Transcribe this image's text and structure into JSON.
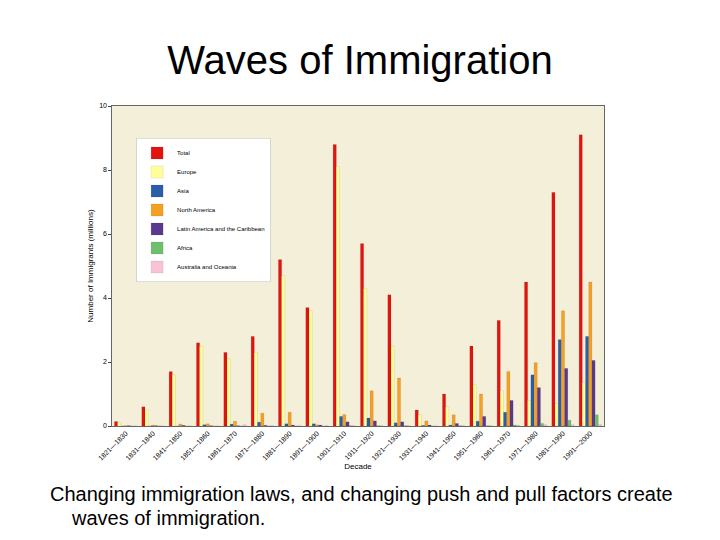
{
  "chart_data": {
    "type": "bar",
    "title": "Waves of Immigration",
    "annotations": [
      "Changing immigration laws, and changing push and pull factors create waves of immigration."
    ],
    "x_label": "Decade",
    "y_label": "Number of Immigrants (millions)",
    "categories": [
      "1821—1830",
      "1831—1840",
      "1841—1850",
      "1851—1860",
      "1861—1870",
      "1871—1880",
      "1881—1890",
      "1891—1900",
      "1901—1910",
      "1911—1920",
      "1921—1930",
      "1931—1940",
      "1941—1950",
      "1951—1960",
      "1961—1970",
      "1971—1980",
      "1981—1990",
      "1991—2000"
    ],
    "series": [
      {
        "name": "Total",
        "color": "#e3140f",
        "values": [
          0.14,
          0.6,
          1.7,
          2.6,
          2.3,
          2.8,
          5.2,
          3.7,
          8.8,
          5.7,
          4.1,
          0.5,
          1.0,
          2.5,
          3.3,
          4.5,
          7.3,
          9.1
        ]
      },
      {
        "name": "Europe",
        "color": "#ffff99",
        "values": [
          0.1,
          0.5,
          1.6,
          2.5,
          2.1,
          2.3,
          4.7,
          3.6,
          8.1,
          4.3,
          2.5,
          0.35,
          0.6,
          1.3,
          1.1,
          0.8,
          0.7,
          1.35
        ]
      },
      {
        "name": "Asia",
        "color": "#2a5ea8",
        "values": [
          0,
          0,
          0,
          0.04,
          0.06,
          0.12,
          0.07,
          0.07,
          0.3,
          0.25,
          0.1,
          0.02,
          0.03,
          0.15,
          0.43,
          1.6,
          2.7,
          2.8
        ]
      },
      {
        "name": "North America",
        "color": "#f5a023",
        "values": [
          0.01,
          0.03,
          0.06,
          0.07,
          0.15,
          0.4,
          0.43,
          0.04,
          0.36,
          1.1,
          1.5,
          0.16,
          0.35,
          1.0,
          1.7,
          1.98,
          3.6,
          4.5
        ]
      },
      {
        "name": "Latin America and the Caribbean",
        "color": "#5a3a8c",
        "values": [
          0.01,
          0.01,
          0.02,
          0.01,
          0.01,
          0.02,
          0.03,
          0.03,
          0.13,
          0.16,
          0.13,
          0.03,
          0.08,
          0.3,
          0.8,
          1.2,
          1.8,
          2.05
        ]
      },
      {
        "name": "Africa",
        "color": "#6cbf6c",
        "values": [
          0,
          0,
          0,
          0,
          0,
          0,
          0,
          0,
          0.01,
          0.01,
          0.01,
          0,
          0.01,
          0.01,
          0.03,
          0.08,
          0.18,
          0.35
        ]
      },
      {
        "name": "Australia and Oceania",
        "color": "#f9c3d3",
        "values": [
          0,
          0,
          0,
          0,
          0.04,
          0.01,
          0.01,
          0.01,
          0.01,
          0.01,
          0.01,
          0,
          0.01,
          0.01,
          0.03,
          0.04,
          0.04,
          0.05
        ]
      }
    ],
    "ylim": [
      0,
      10
    ],
    "yticks": [
      0,
      2,
      4,
      6,
      8,
      10
    ],
    "grid": false,
    "legend": "upper left"
  }
}
